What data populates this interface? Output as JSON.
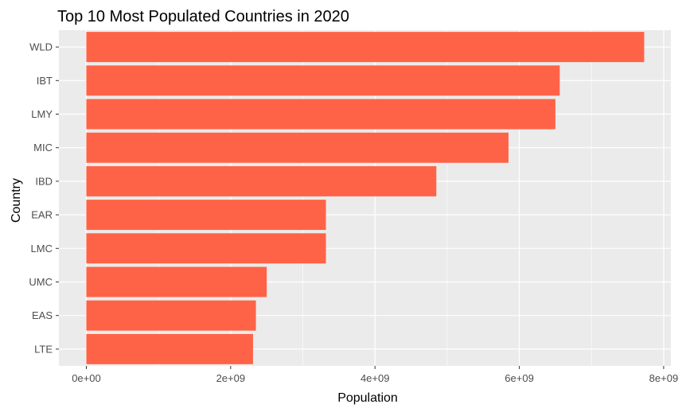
{
  "chart_data": {
    "type": "bar",
    "orientation": "horizontal",
    "title": "Top 10 Most Populated Countries in 2020",
    "xlabel": "Population",
    "ylabel": "Country",
    "categories": [
      "WLD",
      "IBT",
      "LMY",
      "MIC",
      "IBD",
      "EAR",
      "LMC",
      "UMC",
      "EAS",
      "LTE"
    ],
    "values": [
      7730000000.0,
      6560000000.0,
      6500000000.0,
      5850000000.0,
      4850000000.0,
      3320000000.0,
      3320000000.0,
      2500000000.0,
      2350000000.0,
      2310000000.0
    ],
    "xlim": [
      -380000000.0,
      8100000000.0
    ],
    "x_ticks": [
      0,
      2000000000.0,
      4000000000.0,
      6000000000.0,
      8000000000.0
    ],
    "x_tick_labels": [
      "0e+00",
      "2e+09",
      "4e+09",
      "6e+09",
      "8e+09"
    ],
    "bar_color": "#ff6347",
    "panel_color": "#ebebeb",
    "grid_color": "#ffffff",
    "grid": true,
    "legend": "none"
  }
}
